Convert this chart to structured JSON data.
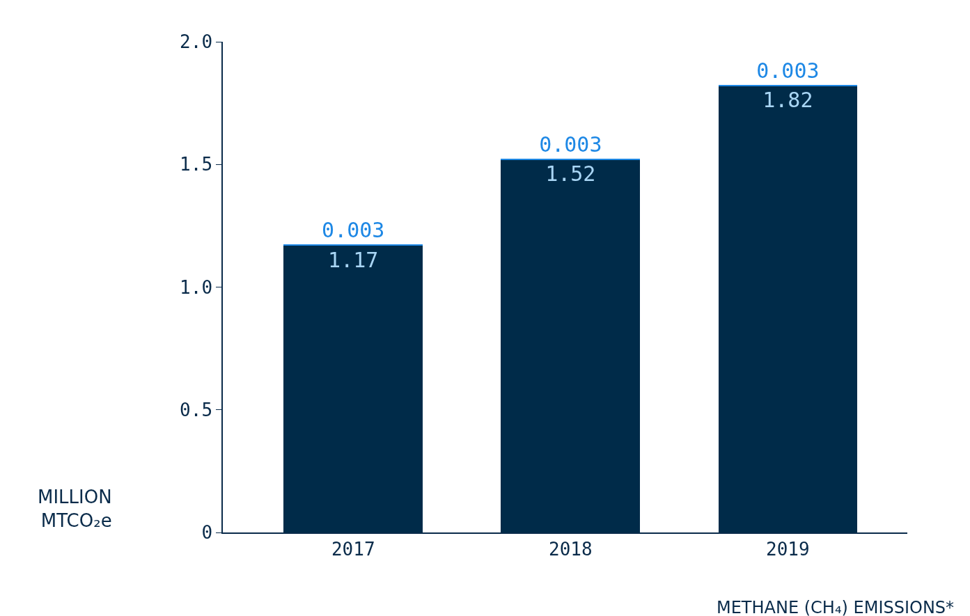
{
  "chart_data": {
    "type": "bar",
    "stacked": true,
    "xlabel": "METHANE (CH₄) EMISSIONS*",
    "ylabel": "MILLION MTCO₂e",
    "categories": [
      "2017",
      "2018",
      "2019"
    ],
    "series": [
      {
        "color": "#002b49",
        "values": [
          1.17,
          1.52,
          1.82
        ]
      },
      {
        "color": "#1e88e5",
        "values": [
          0.003,
          0.003,
          0.003
        ]
      }
    ],
    "ylim": [
      0,
      2.0
    ],
    "yticks": [
      0,
      0.5,
      {
        "value": 1,
        "label": "1.0"
      },
      1.5,
      {
        "value": 2,
        "label": "2.0"
      }
    ],
    "data_labels": true
  }
}
